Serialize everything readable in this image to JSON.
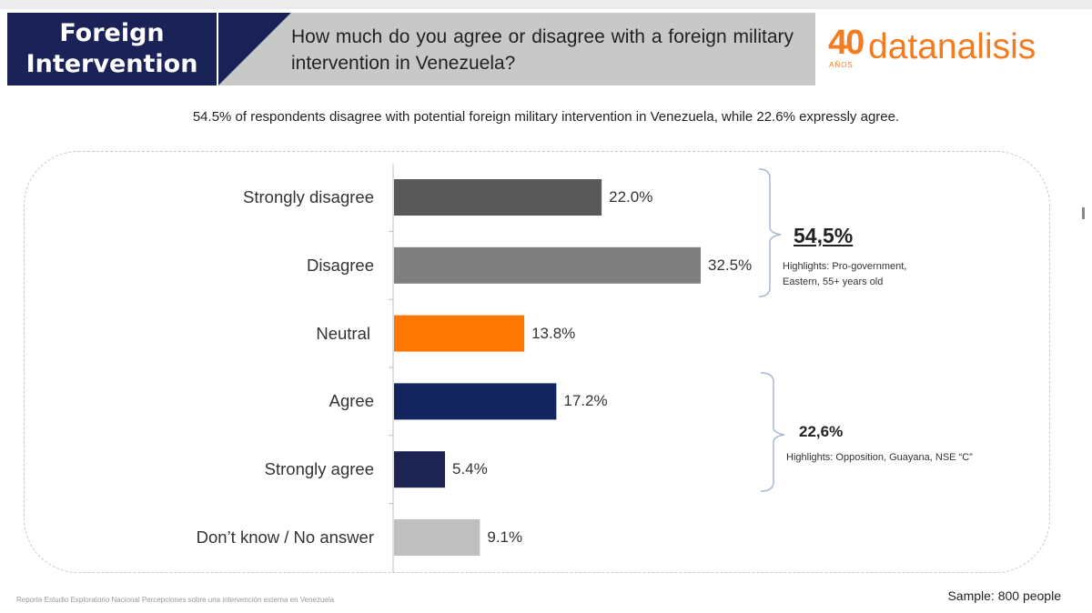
{
  "header": {
    "title_line1": "Foreign",
    "title_line2": "Intervention",
    "question": "How much do you agree or disagree with a foreign military intervention in Venezuela?"
  },
  "logo": {
    "years": "40",
    "years_caption": "AÑOS",
    "brand": "datanalisis"
  },
  "subtitle": "54.5% of respondents disagree with potential foreign military intervention in Venezuela, while 22.6% expressly agree.",
  "groups": [
    {
      "total": "54,5%",
      "note": "Highlights: Pro-government, Eastern, 55+ years old"
    },
    {
      "total": "22,6%",
      "note": "Highlights: Opposition, Guayana, NSE “C”"
    }
  ],
  "footer": {
    "source": "Reporte Estudio Exploratorio Nacional Percepciones sobre una intervención externa en Venezuela",
    "sample": "Sample: 800 people"
  },
  "colors": {
    "navy": "#1a2257",
    "brand_orange": "#f47b20"
  },
  "chart_data": {
    "type": "bar",
    "orientation": "horizontal",
    "title": "How much do you agree or disagree with a foreign military intervention in Venezuela?",
    "categories": [
      "Strongly disagree",
      "Disagree",
      "Neutral",
      "Agree",
      "Strongly agree",
      "Don’t know / No answer"
    ],
    "values": [
      22.0,
      32.5,
      13.8,
      17.2,
      5.4,
      9.1
    ],
    "value_labels": [
      "22.0%",
      "32.5%",
      "13.8%",
      "17.2%",
      "5.4%",
      "9.1%"
    ],
    "bar_colors": [
      "#595959",
      "#7f7f7f",
      "#ff7700",
      "#13255f",
      "#1e2452",
      "#bfbfbf"
    ],
    "xlim": [
      0,
      100
    ],
    "xlabel": "",
    "ylabel": "",
    "grid": false
  }
}
